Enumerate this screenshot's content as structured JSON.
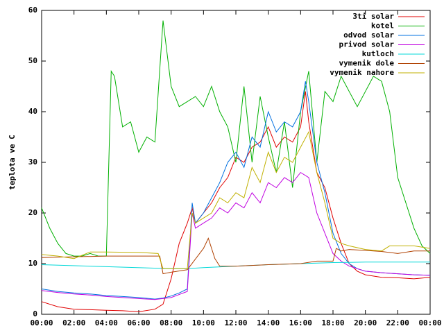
{
  "chart_data": {
    "type": "line",
    "ylabel": "teplota ve C",
    "xlim": [
      0,
      24
    ],
    "ylim": [
      0,
      60
    ],
    "xticks": [
      {
        "value": 0,
        "label": "00:00"
      },
      {
        "value": 2,
        "label": "02:00"
      },
      {
        "value": 4,
        "label": "04:00"
      },
      {
        "value": 6,
        "label": "06:00"
      },
      {
        "value": 8,
        "label": "08:00"
      },
      {
        "value": 10,
        "label": "10:00"
      },
      {
        "value": 12,
        "label": "12:00"
      },
      {
        "value": 14,
        "label": "14:00"
      },
      {
        "value": 16,
        "label": "16:00"
      },
      {
        "value": 18,
        "label": "18:00"
      },
      {
        "value": 20,
        "label": "20:00"
      },
      {
        "value": 22,
        "label": "22:00"
      },
      {
        "value": 24,
        "label": "00:00"
      }
    ],
    "yticks": [
      0,
      10,
      20,
      30,
      40,
      50,
      60
    ],
    "legend": "top-right",
    "series": [
      {
        "name": "3ti solar",
        "color": "#e00000",
        "x": [
          0,
          1,
          2,
          3,
          4,
          5,
          6,
          7,
          7.5,
          8,
          8.5,
          9,
          9.3,
          9.5,
          10,
          10.5,
          11,
          11.5,
          12,
          12.5,
          13,
          13.5,
          14,
          14.5,
          15,
          15.5,
          16,
          16.3,
          16.5,
          17,
          17.5,
          18,
          18.5,
          19,
          19.5,
          20,
          21,
          22,
          23,
          24
        ],
        "values": [
          2.5,
          1.5,
          1,
          0.9,
          0.8,
          0.7,
          0.5,
          1,
          2,
          7,
          14,
          18,
          21,
          18,
          20,
          22,
          25,
          27,
          31,
          30,
          33,
          34,
          37,
          33,
          35,
          34,
          37,
          44,
          38,
          28,
          25,
          19,
          14,
          10,
          8.5,
          7.8,
          7.3,
          7.2,
          7,
          7.3
        ]
      },
      {
        "name": "kotel",
        "color": "#00b000",
        "x": [
          0,
          0.5,
          1,
          1.5,
          2,
          2.5,
          3,
          3.5,
          4,
          4.3,
          4.5,
          5,
          5.5,
          6,
          6.5,
          7,
          7.5,
          8,
          8.5,
          9,
          9.5,
          10,
          10.5,
          11,
          11.5,
          12,
          12.5,
          13,
          13.5,
          14,
          14.5,
          15,
          15.5,
          16,
          16.5,
          17,
          17.5,
          18,
          18.5,
          19,
          19.5,
          20,
          20.5,
          21,
          21.5,
          22,
          22.5,
          23,
          23.5,
          24
        ],
        "values": [
          21,
          17,
          14,
          12,
          11.5,
          11.5,
          12,
          11.5,
          11.5,
          48,
          47,
          37,
          38,
          32,
          35,
          34,
          58,
          45,
          41,
          42,
          43,
          41,
          45,
          40,
          37,
          30,
          45,
          30,
          43,
          35,
          28,
          38,
          25,
          40,
          48,
          30,
          44,
          42,
          47,
          44,
          41,
          44,
          47,
          46,
          40,
          27,
          22,
          17,
          13.5,
          12
        ]
      },
      {
        "name": "odvod solar",
        "color": "#0070e0",
        "x": [
          0,
          1,
          2,
          3,
          4,
          5,
          6,
          7,
          7.5,
          8,
          8.5,
          9,
          9.3,
          9.5,
          10,
          10.5,
          11,
          11.5,
          12,
          12.5,
          13,
          13.5,
          14,
          14.5,
          15,
          15.5,
          16,
          16.3,
          16.5,
          17,
          17.5,
          18,
          18.5,
          19,
          19.5,
          20,
          21,
          22,
          23,
          24
        ],
        "values": [
          5,
          4.5,
          4.2,
          4,
          3.7,
          3.5,
          3.3,
          3,
          3.2,
          3.6,
          4.2,
          5,
          22,
          18,
          20,
          23,
          26,
          30,
          32,
          29,
          35,
          33,
          40,
          36,
          38,
          37,
          40,
          46,
          42,
          30,
          24,
          16,
          12,
          10,
          9,
          8.5,
          8.2,
          8,
          7.8,
          7.7
        ]
      },
      {
        "name": "privod solar",
        "color": "#c000e0",
        "x": [
          0,
          1,
          2,
          3,
          4,
          5,
          6,
          7,
          8,
          9,
          9.3,
          9.5,
          10,
          10.5,
          11,
          11.5,
          12,
          12.5,
          13,
          13.5,
          14,
          14.5,
          15,
          15.5,
          16,
          16.5,
          17,
          17.5,
          18,
          18.5,
          19,
          19.5,
          20,
          21,
          22,
          23,
          24
        ],
        "values": [
          4.7,
          4.3,
          4,
          3.8,
          3.5,
          3.3,
          3.1,
          2.9,
          3.3,
          4.5,
          20,
          17,
          18,
          19,
          21,
          20,
          22,
          21,
          24,
          22,
          26,
          25,
          27,
          26,
          28,
          27,
          20,
          16,
          12,
          10.5,
          9.5,
          9,
          8.5,
          8.2,
          8,
          7.8,
          7.7
        ]
      },
      {
        "name": "kutloch",
        "color": "#00d8d8",
        "x": [
          0,
          4,
          8,
          9,
          10,
          12,
          14,
          16,
          18,
          20,
          24
        ],
        "values": [
          9.8,
          9.4,
          9,
          9,
          9.2,
          9.5,
          9.8,
          10,
          10.2,
          10.3,
          10.3
        ]
      },
      {
        "name": "vymenik dole",
        "color": "#b04000",
        "x": [
          0,
          4,
          7.3,
          7.5,
          8,
          9,
          10,
          10.3,
          10.7,
          11,
          12,
          14,
          16,
          17,
          18,
          18.2,
          18.5,
          19,
          20,
          21,
          22,
          23,
          24
        ],
        "values": [
          11.2,
          11.5,
          11.5,
          8,
          8.3,
          8.8,
          13,
          15,
          11,
          9.5,
          9.5,
          9.8,
          10,
          10.5,
          10.5,
          13,
          12.5,
          12.8,
          12.6,
          12.4,
          12,
          12.5,
          12.5
        ]
      },
      {
        "name": "vymenik nahore",
        "color": "#c0b000",
        "x": [
          0,
          1,
          2,
          3,
          4,
          6,
          7.2,
          7.5,
          8,
          9,
          9.3,
          9.5,
          10,
          10.5,
          11,
          11.5,
          12,
          12.5,
          13,
          13.5,
          14,
          14.5,
          15,
          15.5,
          16,
          16.5,
          17,
          17.5,
          18,
          18.5,
          19,
          20,
          21,
          21.5,
          22,
          23,
          24
        ],
        "values": [
          11.8,
          11.5,
          11,
          12.3,
          12.3,
          12.2,
          12,
          9,
          9,
          9,
          20,
          18,
          19,
          20,
          23,
          22,
          24,
          23,
          29,
          26,
          32,
          28,
          31,
          30,
          33,
          36,
          28,
          22,
          15,
          14,
          13.5,
          12.8,
          12.5,
          13.5,
          13.5,
          13.5,
          13
        ]
      }
    ]
  }
}
